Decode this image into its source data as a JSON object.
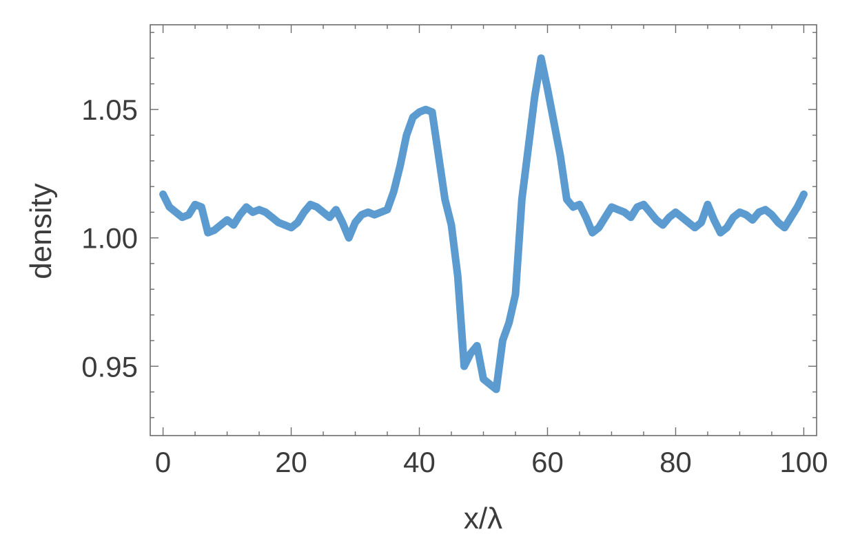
{
  "chart_data": {
    "type": "line",
    "title": "",
    "xlabel": "x/λ",
    "ylabel": "density",
    "xlim": [
      -2,
      102
    ],
    "ylim": [
      0.923,
      1.083
    ],
    "xticks": [
      0,
      20,
      40,
      60,
      80,
      100
    ],
    "xtick_labels": [
      "0",
      "20",
      "40",
      "60",
      "80",
      "100"
    ],
    "yticks": [
      0.95,
      1.0,
      1.05
    ],
    "ytick_labels": [
      "0.95",
      "1.00",
      "1.05"
    ],
    "grid": false,
    "color": "#5b9bd0",
    "series": [
      {
        "x": [
          0,
          1,
          2,
          3,
          4,
          5,
          6,
          7,
          8,
          9,
          10,
          11,
          12,
          13,
          14,
          15,
          16,
          17,
          18,
          19,
          20,
          21,
          22,
          23,
          24,
          25,
          26,
          27,
          28,
          29,
          30,
          31,
          32,
          33,
          34,
          35,
          36,
          37,
          38,
          39,
          40,
          41,
          42,
          43,
          44,
          45,
          46,
          47,
          48,
          49,
          50,
          51,
          52,
          53,
          54,
          55,
          56,
          57,
          58,
          59,
          60,
          61,
          62,
          63,
          64,
          65,
          66,
          67,
          68,
          69,
          70,
          71,
          72,
          73,
          74,
          75,
          76,
          77,
          78,
          79,
          80,
          81,
          82,
          83,
          84,
          85,
          86,
          87,
          88,
          89,
          90,
          91,
          92,
          93,
          94,
          95,
          96,
          97,
          98,
          99,
          100
        ],
        "y": [
          1.017,
          1.012,
          1.01,
          1.008,
          1.009,
          1.013,
          1.012,
          1.002,
          1.003,
          1.005,
          1.007,
          1.005,
          1.009,
          1.012,
          1.01,
          1.011,
          1.01,
          1.008,
          1.006,
          1.005,
          1.004,
          1.006,
          1.01,
          1.013,
          1.012,
          1.01,
          1.008,
          1.011,
          1.006,
          1.0,
          1.006,
          1.009,
          1.01,
          1.009,
          1.01,
          1.011,
          1.018,
          1.028,
          1.04,
          1.047,
          1.049,
          1.05,
          1.049,
          1.032,
          1.015,
          1.005,
          0.985,
          0.95,
          0.955,
          0.958,
          0.945,
          0.943,
          0.941,
          0.96,
          0.967,
          0.978,
          1.015,
          1.035,
          1.055,
          1.07,
          1.058,
          1.045,
          1.032,
          1.015,
          1.012,
          1.013,
          1.008,
          1.002,
          1.004,
          1.008,
          1.012,
          1.011,
          1.01,
          1.008,
          1.012,
          1.013,
          1.01,
          1.007,
          1.005,
          1.008,
          1.01,
          1.008,
          1.006,
          1.004,
          1.006,
          1.013,
          1.007,
          1.002,
          1.004,
          1.008,
          1.01,
          1.009,
          1.007,
          1.01,
          1.011,
          1.009,
          1.006,
          1.004,
          1.008,
          1.012,
          1.017
        ]
      }
    ]
  }
}
